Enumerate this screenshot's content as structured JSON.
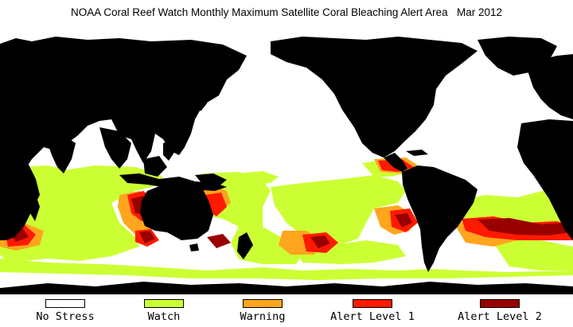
{
  "title": "NOAA Coral Reef Watch Monthly Maximum Satellite Coral Bleaching Alert Area   Mar 2012",
  "map": {
    "projection": "equirectangular, Pacific-centered",
    "land_color": "#000000",
    "ocean_no_stress_color": "#ffffff"
  },
  "legend": [
    {
      "label": "No Stress",
      "color": "#ffffff"
    },
    {
      "label": "Watch",
      "color": "#ccff33"
    },
    {
      "label": "Warning",
      "color": "#ffa51e"
    },
    {
      "label": "Alert Level 1",
      "color": "#ff1a00"
    },
    {
      "label": "Alert Level 2",
      "color": "#990000"
    }
  ]
}
